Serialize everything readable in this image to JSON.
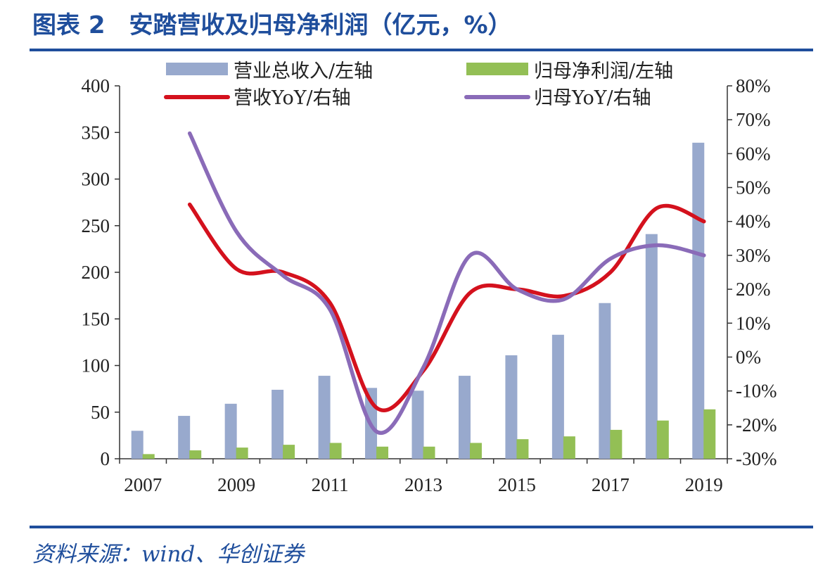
{
  "header": {
    "fig_label": "图表 2",
    "title": "安踏营收及归母净利润（亿元，%）"
  },
  "footer": {
    "source": "资料来源：wind、华创证券"
  },
  "colors": {
    "accent": "#1f4e9c",
    "revenue_bar": "#98a9cd",
    "profit_bar": "#93bf55",
    "revenue_yoy_line": "#d4111d",
    "profit_yoy_line": "#8a6bb8"
  },
  "chart_data": {
    "type": "bar",
    "x_tick_labels": [
      "2007",
      "2009",
      "2011",
      "2013",
      "2015",
      "2017",
      "2019"
    ],
    "categories": [
      "2007",
      "2008",
      "2009",
      "2010",
      "2011",
      "2012",
      "2013",
      "2014",
      "2015",
      "2016",
      "2017",
      "2018",
      "2019"
    ],
    "ylim_left": [
      0,
      400
    ],
    "ylim_right": [
      -30,
      80
    ],
    "y_left_ticks": [
      "0",
      "50",
      "100",
      "150",
      "200",
      "250",
      "300",
      "350",
      "400"
    ],
    "y_right_ticks": [
      "-30%",
      "-20%",
      "-10%",
      "0%",
      "10%",
      "20%",
      "30%",
      "40%",
      "50%",
      "60%",
      "70%",
      "80%"
    ],
    "legend_position": "top",
    "series": [
      {
        "name": "营业总收入/左轴",
        "type": "bar",
        "axis": "left",
        "values": [
          30,
          46,
          59,
          74,
          89,
          76,
          73,
          89,
          111,
          133,
          167,
          241,
          339
        ]
      },
      {
        "name": "归母净利润/左轴",
        "type": "bar",
        "axis": "left",
        "values": [
          5,
          9,
          12,
          15,
          17,
          13,
          13,
          17,
          21,
          24,
          31,
          41,
          53
        ]
      },
      {
        "name": "营收YoY/右轴",
        "type": "line",
        "axis": "right",
        "values": [
          null,
          45,
          26,
          25,
          16,
          -15,
          -4,
          19,
          20,
          18,
          25,
          44,
          40
        ]
      },
      {
        "name": "归母YoY/右轴",
        "type": "line",
        "axis": "right",
        "values": [
          null,
          66,
          37,
          24,
          14,
          -22,
          -3,
          30,
          20,
          17,
          29,
          33,
          30
        ]
      }
    ]
  }
}
